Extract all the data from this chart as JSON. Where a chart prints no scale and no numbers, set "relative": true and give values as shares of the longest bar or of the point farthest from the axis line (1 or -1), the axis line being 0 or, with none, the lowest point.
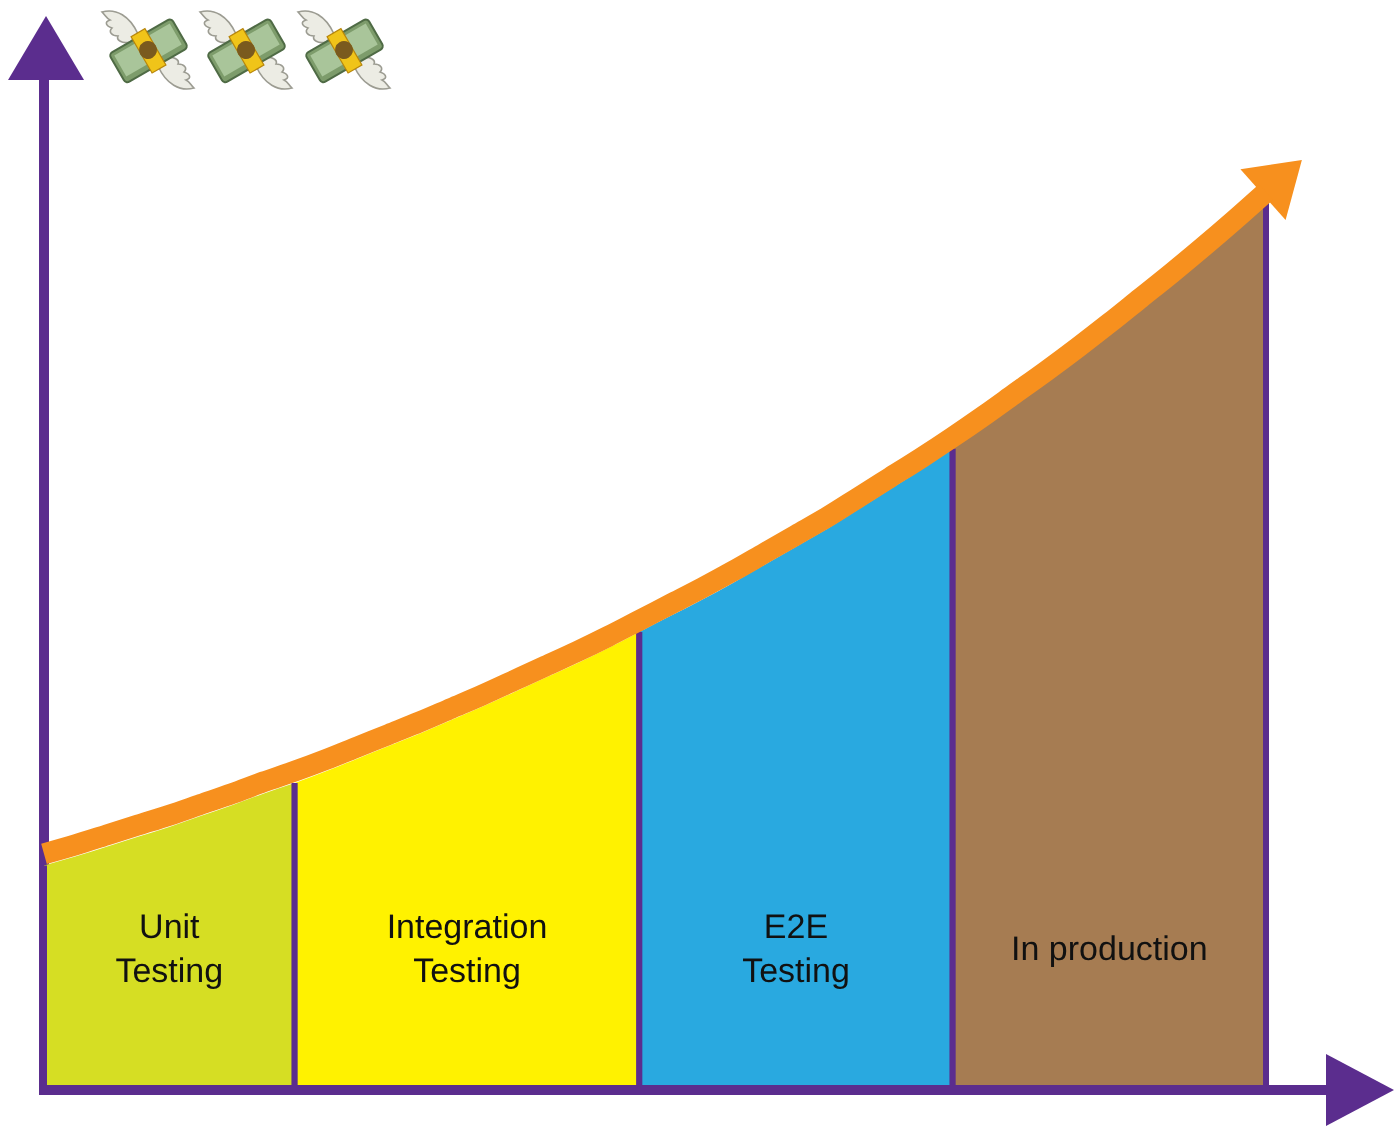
{
  "chart_data": {
    "type": "area",
    "relative": true,
    "categories": [
      null,
      null,
      null,
      null,
      null,
      null,
      null,
      null,
      null,
      null,
      null,
      null,
      null,
      null,
      null,
      null,
      null,
      null,
      null,
      null,
      null,
      null,
      null,
      null,
      null,
      null,
      null,
      null,
      null,
      null,
      null,
      null,
      null,
      null,
      null,
      null,
      null,
      null,
      null,
      null
    ],
    "series": [
      {
        "name": "Unit\nTesting",
        "color": "#d6de23",
        "values": [
          0.25,
          0.26,
          0.271,
          0.282,
          0.293,
          0.305,
          0.317,
          0.33,
          0.342,
          null,
          null,
          null,
          null,
          null,
          null,
          null,
          null,
          null,
          null,
          null,
          null,
          null,
          null,
          null,
          null,
          null,
          null,
          null,
          null,
          null,
          null,
          null,
          null,
          null,
          null,
          null,
          null,
          null,
          null,
          null
        ]
      },
      {
        "name": "Integration\nTesting",
        "color": "#fff200",
        "values": [
          null,
          null,
          null,
          null,
          null,
          null,
          null,
          null,
          0.342,
          0.355,
          0.369,
          0.383,
          0.397,
          0.412,
          0.427,
          0.443,
          0.459,
          0.475,
          0.492,
          0.51,
          null,
          null,
          null,
          null,
          null,
          null,
          null,
          null,
          null,
          null,
          null,
          null,
          null,
          null,
          null,
          null,
          null,
          null,
          null,
          null
        ]
      },
      {
        "name": "E2E\nTesting",
        "color": "#29a9e0",
        "values": [
          null,
          null,
          null,
          null,
          null,
          null,
          null,
          null,
          null,
          null,
          null,
          null,
          null,
          null,
          null,
          null,
          null,
          null,
          null,
          0.51,
          0.528,
          0.546,
          0.565,
          0.585,
          0.605,
          0.625,
          0.647,
          0.669,
          0.691,
          0.714,
          null,
          null,
          null,
          null,
          null,
          null,
          null,
          null,
          null,
          null
        ]
      },
      {
        "name": "In production",
        "color": "#a67c52",
        "values": [
          null,
          null,
          null,
          null,
          null,
          null,
          null,
          null,
          null,
          null,
          null,
          null,
          null,
          null,
          null,
          null,
          null,
          null,
          null,
          null,
          null,
          null,
          null,
          null,
          null,
          null,
          null,
          null,
          null,
          0.714,
          0.738,
          0.763,
          0.788,
          0.814,
          0.841,
          0.869,
          0.897,
          0.926,
          0.956,
          0.987
        ]
      },
      {
        "type": "line",
        "color": "#f7901e",
        "values": [
          0.263,
          0.273,
          0.284,
          0.295,
          0.306,
          0.318,
          0.33,
          0.343,
          0.355,
          0.368,
          0.382,
          0.396,
          0.41,
          0.425,
          0.44,
          0.456,
          0.472,
          0.488,
          0.505,
          0.523,
          0.541,
          0.559,
          0.578,
          0.598,
          0.618,
          0.638,
          0.66,
          0.682,
          0.704,
          0.727,
          0.751,
          0.776,
          0.801,
          0.827,
          0.854,
          0.882,
          0.91,
          0.939,
          0.969,
          1
        ]
      }
    ]
  }
}
